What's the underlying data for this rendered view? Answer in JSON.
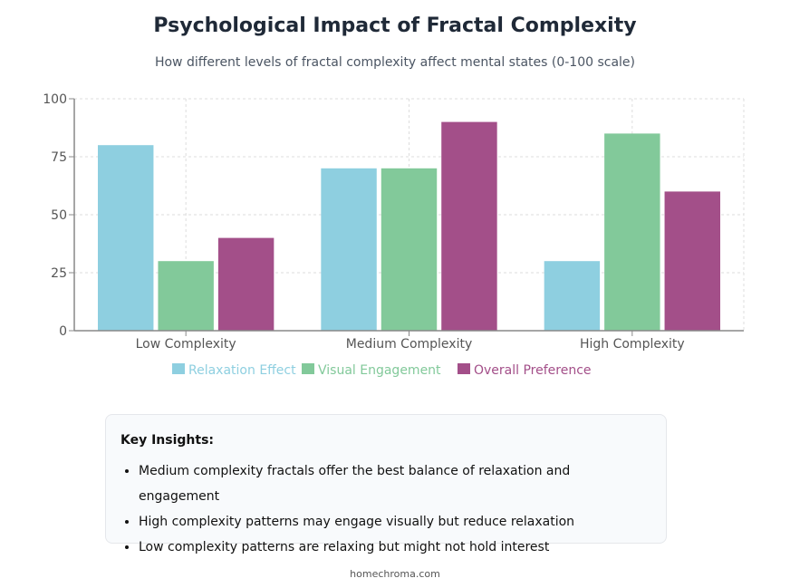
{
  "chart_data": {
    "type": "bar",
    "title": "Psychological Impact of Fractal Complexity",
    "subtitle": "How different levels of fractal complexity affect mental states (0-100 scale)",
    "categories": [
      "Low Complexity",
      "Medium Complexity",
      "High Complexity"
    ],
    "series": [
      {
        "name": "Relaxation Effect",
        "values": [
          80,
          70,
          30
        ],
        "color": "#8ecfe0"
      },
      {
        "name": "Visual Engagement",
        "values": [
          30,
          70,
          85
        ],
        "color": "#82c99a"
      },
      {
        "name": "Overall Preference",
        "values": [
          40,
          90,
          60
        ],
        "color": "#a34f89"
      }
    ],
    "ylim": [
      0,
      100
    ],
    "yticks": [
      0,
      25,
      50,
      75,
      100
    ],
    "grid": true,
    "legend": "bottom"
  },
  "insights": {
    "heading": "Key Insights:",
    "items": [
      "Medium complexity fractals offer the best balance of relaxation and engagement",
      "High complexity patterns may engage visually but reduce relaxation",
      "Low complexity patterns are relaxing but might not hold interest"
    ]
  },
  "footer": "homechroma.com"
}
